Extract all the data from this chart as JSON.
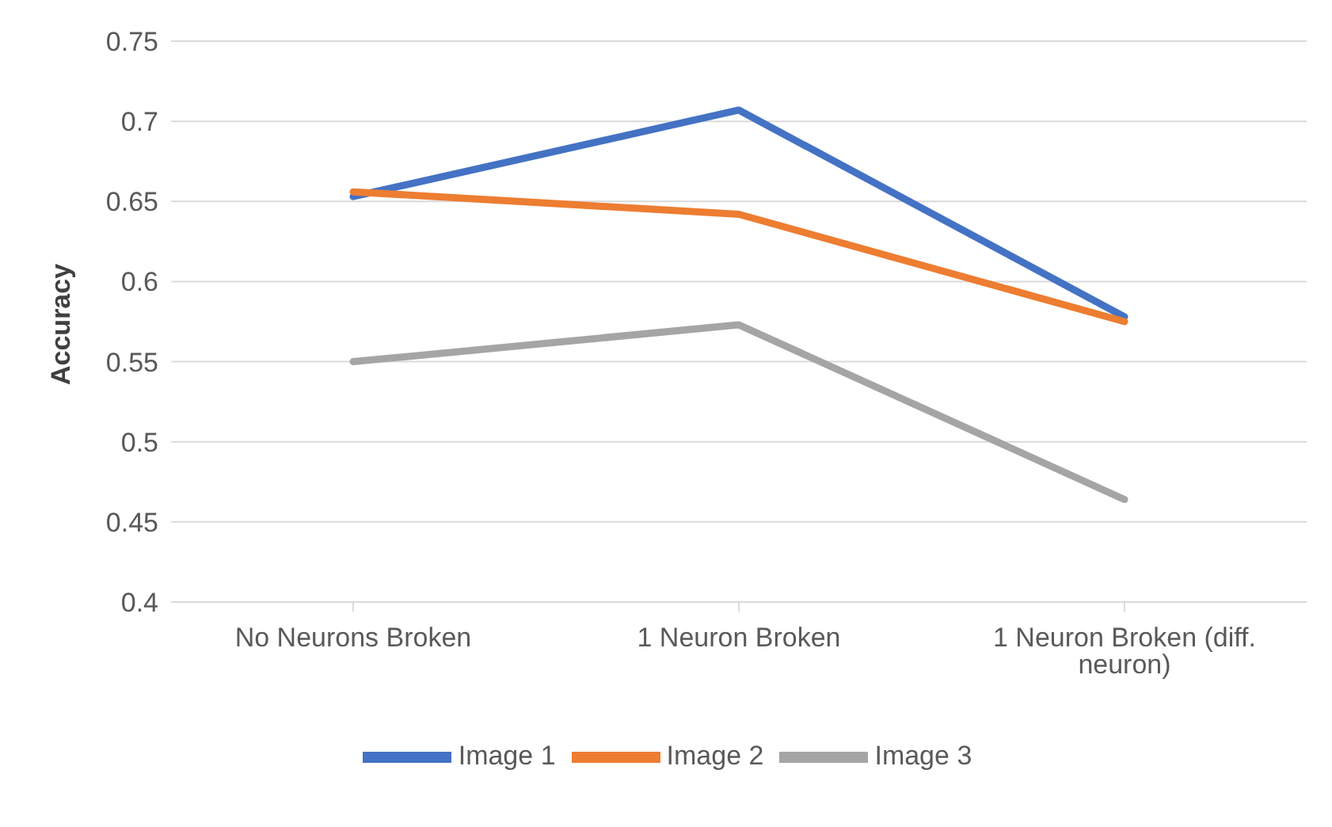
{
  "chart_data": {
    "type": "line",
    "ylabel": "Accuracy",
    "categories": [
      "No Neurons Broken",
      "1 Neuron Broken",
      "1 Neuron Broken (diff. neuron)"
    ],
    "series": [
      {
        "name": "Image 1",
        "color": "#4472c4",
        "values": [
          0.653,
          0.707,
          0.578
        ]
      },
      {
        "name": "Image 2",
        "color": "#ed7d31",
        "values": [
          0.656,
          0.642,
          0.575
        ]
      },
      {
        "name": "Image 3",
        "color": "#a5a5a5",
        "values": [
          0.55,
          0.573,
          0.464
        ]
      }
    ],
    "ylim": [
      0.4,
      0.75
    ],
    "yticks": [
      0.4,
      0.45,
      0.5,
      0.55,
      0.6,
      0.65,
      0.7,
      0.75
    ],
    "grid": "y",
    "legend": "bottom"
  }
}
